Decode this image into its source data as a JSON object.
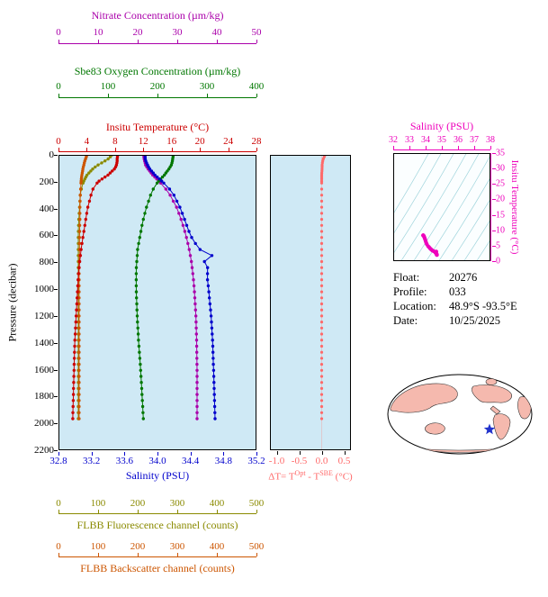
{
  "colors": {
    "plot_bg": "#cfe9f5",
    "contour": "#9fd4dc",
    "map_land": "#f5b9ae",
    "map_outline": "#000000",
    "star": "#2233cc"
  },
  "chart_data": [
    {
      "id": "profiles",
      "type": "line",
      "ylabel": "Pressure (decibar)",
      "ylim": [
        0,
        2200
      ],
      "y_ticks": [
        "0",
        "200",
        "400",
        "600",
        "800",
        "1000",
        "1200",
        "1400",
        "1600",
        "1800",
        "2000",
        "2200"
      ],
      "pressure": [
        0,
        25,
        50,
        75,
        100,
        150,
        200,
        250,
        300,
        400,
        500,
        600,
        700,
        750,
        800,
        850,
        900,
        1000,
        1200,
        1400,
        1600,
        1800,
        2000
      ],
      "series": [
        {
          "name": "Nitrate Concentration (µm/kg)",
          "color": "#aa00aa",
          "axis": "top-1",
          "xlim": [
            0,
            50
          ],
          "ticks": [
            "0",
            "10",
            "20",
            "30",
            "40",
            "50"
          ],
          "values": [
            21.5,
            21.6,
            21.8,
            22.0,
            22.5,
            23.8,
            25.5,
            27.0,
            28.2,
            30.0,
            31.2,
            32.2,
            33.0,
            33.3,
            33.6,
            33.8,
            34.0,
            34.3,
            34.7,
            34.9,
            35.0,
            35.0,
            35.0
          ]
        },
        {
          "name": "Sbe83 Oxygen Concentration (µm/kg)",
          "color": "#007700",
          "axis": "top-2",
          "xlim": [
            0,
            400
          ],
          "ticks": [
            "0",
            "100",
            "200",
            "300",
            "400"
          ],
          "values": [
            232,
            231,
            230,
            228,
            224,
            214,
            201,
            192,
            186,
            177,
            170,
            165,
            160,
            159,
            158,
            157,
            157,
            157,
            159,
            162,
            166,
            169,
            172
          ]
        },
        {
          "name": "Insitu Temperature (°C)",
          "color": "#cc0000",
          "axis": "top-3",
          "xlim": [
            0,
            28
          ],
          "ticks": [
            "0",
            "4",
            "8",
            "12",
            "16",
            "20",
            "24",
            "28"
          ],
          "values": [
            8.4,
            8.3,
            8.3,
            8.2,
            8.0,
            7.0,
            5.6,
            4.9,
            4.6,
            4.1,
            3.8,
            3.5,
            3.2,
            3.1,
            3.0,
            2.9,
            2.8,
            2.7,
            2.5,
            2.3,
            2.2,
            2.1,
            2.0
          ]
        },
        {
          "name": "Salinity (PSU)",
          "color": "#0000cc",
          "axis": "bottom-1",
          "xlim": [
            32.8,
            35.2
          ],
          "ticks": [
            "32.8",
            "33.2",
            "33.6",
            "34.0",
            "34.4",
            "34.8",
            "35.2"
          ],
          "values": [
            33.85,
            33.85,
            33.86,
            33.88,
            33.9,
            33.97,
            34.06,
            34.14,
            34.2,
            34.28,
            34.34,
            34.4,
            34.5,
            34.66,
            34.56,
            34.62,
            34.6,
            34.62,
            34.65,
            34.67,
            34.68,
            34.69,
            34.7
          ]
        },
        {
          "name": "FLBB Fluorescence channel (counts)",
          "color": "#8a8a00",
          "axis": "bottom-2",
          "xlim": [
            0,
            500
          ],
          "ticks": [
            "0",
            "100",
            "200",
            "300",
            "400",
            "500"
          ],
          "values": [
            135,
            128,
            115,
            100,
            88,
            72,
            63,
            58,
            55,
            53,
            51,
            50,
            50,
            50,
            50,
            50,
            50,
            50,
            50,
            50,
            50,
            50,
            50
          ]
        },
        {
          "name": "FLBB Backscatter channel (counts)",
          "color": "#cc5500",
          "axis": "bottom-3",
          "xlim": [
            0,
            500
          ],
          "ticks": [
            "0",
            "100",
            "200",
            "300",
            "400",
            "500"
          ],
          "values": [
            72,
            69,
            66,
            64,
            62,
            59,
            57,
            56,
            55,
            54,
            54,
            53,
            53,
            53,
            52,
            52,
            52,
            52,
            52,
            52,
            52,
            52,
            52
          ]
        }
      ]
    },
    {
      "id": "delta-t",
      "type": "scatter",
      "label_parts": {
        "p1": "ΔT= T",
        "sup1": "Opt",
        "p2": " - T",
        "sup2": "SBE",
        "p3": " (°C)"
      },
      "color": "#ff6a6a",
      "xlim": [
        -1.15,
        0.65
      ],
      "x_ticks": [
        "-1.0",
        "-0.5",
        "0.0",
        "0.5"
      ],
      "values": [
        0.08,
        0.04,
        0.02,
        0.01,
        0.01,
        0.0,
        0.0,
        0.0,
        0.0,
        0.0,
        0.0,
        0.0,
        0.0,
        0.0,
        0.0,
        0.0,
        0.0,
        0.0,
        0.0,
        0.0,
        0.0,
        0.0,
        0.0
      ]
    },
    {
      "id": "ts-diagram",
      "type": "scatter",
      "title": "Salinity (PSU)",
      "ylabel": "Insitu Temperature (°C)",
      "xlim": [
        32,
        38
      ],
      "x_ticks": [
        "32",
        "33",
        "34",
        "35",
        "36",
        "37",
        "38"
      ],
      "ylim": [
        0,
        35
      ],
      "y_ticks": [
        "0",
        "5",
        "10",
        "15",
        "20",
        "25",
        "30",
        "35"
      ],
      "color": "#ee00bb",
      "x_series": "Salinity (PSU)",
      "y_series": "Insitu Temperature (°C)"
    }
  ],
  "float_info": {
    "rows": [
      {
        "label": "Float:",
        "value": "20276"
      },
      {
        "label": "Profile:",
        "value": "033"
      },
      {
        "label": "Location:",
        "value": "48.9°S -93.5°E"
      },
      {
        "label": "Date:",
        "value": "10/25/2025"
      }
    ]
  }
}
